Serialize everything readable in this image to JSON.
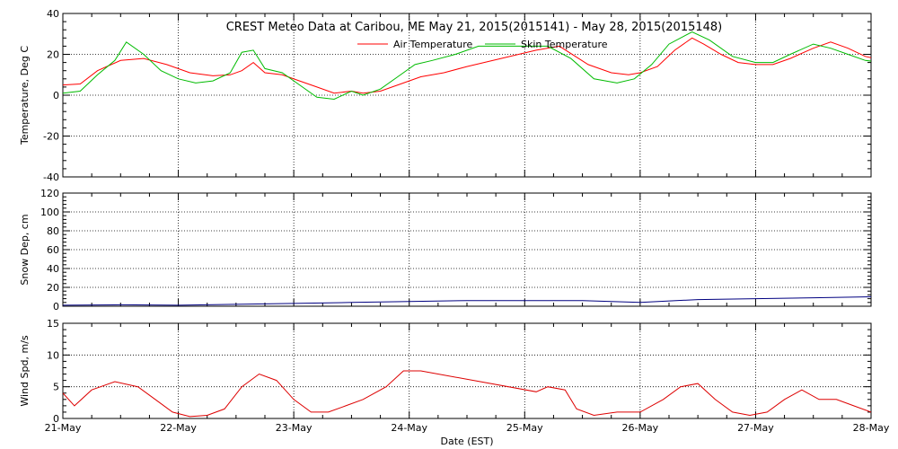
{
  "chart_data": {
    "type": "line",
    "title": "CREST Meteo Data at Caribou, ME   May 21, 2015(2015141) - May 28, 2015(2015148)",
    "xlabel": "Date (EST)",
    "x_ticks": [
      "21-May",
      "22-May",
      "23-May",
      "24-May",
      "25-May",
      "26-May",
      "27-May",
      "28-May"
    ],
    "x_range_days": [
      0,
      7
    ],
    "grid": "dotted",
    "legend_position": "top-center",
    "panels": [
      {
        "ylabel": "Temperature, Deg C",
        "ylim": [
          -40,
          40
        ],
        "yticks": [
          -40,
          -20,
          0,
          20,
          40
        ],
        "series": [
          {
            "name": "Air Temperature",
            "color": "#ff0000",
            "points": [
              [
                0,
                5
              ],
              [
                0.15,
                5.5
              ],
              [
                0.3,
                12
              ],
              [
                0.5,
                17
              ],
              [
                0.7,
                18
              ],
              [
                0.9,
                15
              ],
              [
                1.1,
                11
              ],
              [
                1.3,
                9.5
              ],
              [
                1.45,
                10
              ],
              [
                1.55,
                12
              ],
              [
                1.65,
                16
              ],
              [
                1.75,
                11
              ],
              [
                1.9,
                10
              ],
              [
                2.05,
                7
              ],
              [
                2.2,
                4
              ],
              [
                2.35,
                1
              ],
              [
                2.5,
                2
              ],
              [
                2.6,
                1
              ],
              [
                2.75,
                2
              ],
              [
                2.95,
                6
              ],
              [
                3.1,
                9
              ],
              [
                3.3,
                11
              ],
              [
                3.5,
                14
              ],
              [
                4.1,
                22
              ],
              [
                4.3,
                24
              ],
              [
                4.55,
                15
              ],
              [
                4.75,
                11
              ],
              [
                4.9,
                10
              ],
              [
                5.0,
                11
              ],
              [
                5.15,
                14
              ],
              [
                5.3,
                22
              ],
              [
                5.45,
                28
              ],
              [
                5.55,
                25
              ],
              [
                5.7,
                20
              ],
              [
                5.85,
                16
              ],
              [
                6.0,
                15
              ],
              [
                6.15,
                15
              ],
              [
                6.3,
                18
              ],
              [
                6.5,
                23
              ],
              [
                6.65,
                26
              ],
              [
                6.8,
                23
              ],
              [
                6.95,
                19
              ],
              [
                7.1,
                17
              ],
              [
                7.25,
                18
              ],
              [
                7.45,
                24
              ],
              [
                7.65,
                28
              ],
              [
                7.8,
                30
              ],
              [
                7.95,
                28
              ],
              [
                8.05,
                20
              ],
              [
                8.3,
                19
              ],
              [
                8.5,
                18
              ]
            ]
          },
          {
            "name": "Skin Temperature",
            "color": "#00bb00",
            "points": [
              [
                0,
                1
              ],
              [
                0.15,
                2
              ],
              [
                0.3,
                10
              ],
              [
                0.45,
                17
              ],
              [
                0.55,
                26
              ],
              [
                0.7,
                20
              ],
              [
                0.85,
                12
              ],
              [
                1.0,
                8
              ],
              [
                1.15,
                6
              ],
              [
                1.3,
                7
              ],
              [
                1.45,
                11
              ],
              [
                1.55,
                21
              ],
              [
                1.65,
                22
              ],
              [
                1.75,
                13
              ],
              [
                1.9,
                11
              ],
              [
                2.05,
                5
              ],
              [
                2.2,
                -1
              ],
              [
                2.35,
                -2
              ],
              [
                2.5,
                2
              ],
              [
                2.6,
                0
              ],
              [
                2.75,
                3
              ],
              [
                2.9,
                9
              ],
              [
                3.05,
                15
              ],
              [
                3.2,
                17
              ],
              [
                3.4,
                20
              ],
              [
                3.6,
                24
              ],
              [
                4.2,
                24
              ],
              [
                4.4,
                18
              ],
              [
                4.6,
                8
              ],
              [
                4.8,
                6
              ],
              [
                4.95,
                8
              ],
              [
                5.1,
                15
              ],
              [
                5.25,
                25
              ],
              [
                5.45,
                31
              ],
              [
                5.6,
                27
              ],
              [
                5.8,
                19
              ],
              [
                6.0,
                16
              ],
              [
                6.15,
                16
              ],
              [
                6.3,
                20
              ],
              [
                6.5,
                25
              ],
              [
                6.65,
                23
              ],
              [
                6.8,
                20
              ],
              [
                6.95,
                17
              ],
              [
                7.1,
                16
              ],
              [
                7.25,
                17
              ],
              [
                7.4,
                24
              ],
              [
                7.6,
                28
              ],
              [
                7.8,
                31
              ],
              [
                7.95,
                28
              ],
              [
                8.1,
                21
              ],
              [
                8.3,
                20
              ],
              [
                8.5,
                19
              ]
            ]
          }
        ]
      },
      {
        "ylabel": "Snow Dep, cm",
        "ylim": [
          0,
          120
        ],
        "yticks": [
          0,
          20,
          40,
          60,
          80,
          100,
          120
        ],
        "series": [
          {
            "name": "",
            "color": "#000080",
            "points": [
              [
                0,
                1
              ],
              [
                0.5,
                1.5
              ],
              [
                1,
                1
              ],
              [
                1.5,
                2
              ],
              [
                2,
                3
              ],
              [
                2.5,
                4
              ],
              [
                3,
                5
              ],
              [
                3.5,
                6
              ],
              [
                4,
                6
              ],
              [
                4.5,
                6
              ],
              [
                5,
                4
              ],
              [
                5.5,
                7
              ],
              [
                6,
                8
              ],
              [
                6.5,
                9
              ],
              [
                7,
                10
              ],
              [
                7.5,
                12
              ],
              [
                8,
                13
              ],
              [
                8.5,
                12
              ]
            ]
          }
        ]
      },
      {
        "ylabel": "Wind Spd, m/s",
        "ylim": [
          0,
          15
        ],
        "yticks": [
          0,
          5,
          10,
          15
        ],
        "series": [
          {
            "name": "",
            "color": "#dd0000",
            "points": [
              [
                0,
                4
              ],
              [
                0.1,
                2
              ],
              [
                0.25,
                4.5
              ],
              [
                0.45,
                5.8
              ],
              [
                0.65,
                5
              ],
              [
                0.8,
                3
              ],
              [
                0.95,
                1
              ],
              [
                1.1,
                0.3
              ],
              [
                1.25,
                0.5
              ],
              [
                1.4,
                1.5
              ],
              [
                1.55,
                5
              ],
              [
                1.7,
                7
              ],
              [
                1.85,
                6
              ],
              [
                2.0,
                3
              ],
              [
                2.15,
                1
              ],
              [
                2.3,
                1
              ],
              [
                2.45,
                2
              ],
              [
                2.6,
                3
              ],
              [
                2.8,
                5
              ],
              [
                2.95,
                7.5
              ],
              [
                3.1,
                7.5
              ],
              [
                4.1,
                4.2
              ],
              [
                4.2,
                5
              ],
              [
                4.35,
                4.5
              ],
              [
                4.45,
                1.5
              ],
              [
                4.6,
                0.5
              ],
              [
                4.8,
                1
              ],
              [
                5.0,
                1
              ],
              [
                5.2,
                3
              ],
              [
                5.35,
                5
              ],
              [
                5.5,
                5.5
              ],
              [
                5.65,
                3
              ],
              [
                5.8,
                1
              ],
              [
                5.95,
                0.5
              ],
              [
                6.1,
                1
              ],
              [
                6.25,
                3
              ],
              [
                6.4,
                4.5
              ],
              [
                6.55,
                3
              ],
              [
                6.7,
                3
              ],
              [
                6.85,
                2
              ],
              [
                7.0,
                1
              ],
              [
                7.15,
                0.3
              ],
              [
                7.3,
                0.5
              ],
              [
                7.45,
                1.5
              ],
              [
                7.6,
                3
              ],
              [
                7.8,
                3.5
              ],
              [
                7.9,
                5.5
              ],
              [
                7.95,
                2
              ],
              [
                8.1,
                1
              ],
              [
                8.3,
                0.8
              ],
              [
                8.5,
                0.7
              ]
            ]
          }
        ]
      }
    ]
  }
}
